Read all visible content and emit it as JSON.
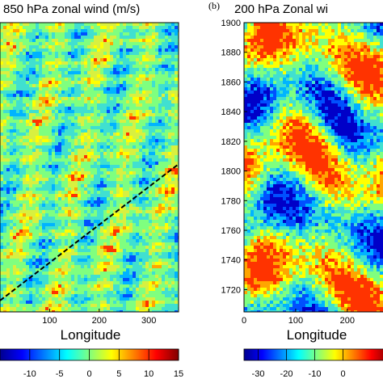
{
  "chart_data": [
    {
      "type": "heatmap",
      "title": "850 hPa zonal wind (m/s)",
      "xlabel": "Longitude",
      "x_ticks": [
        100,
        200,
        300
      ],
      "xlim": [
        0,
        360
      ],
      "colorbar": {
        "ticks": [
          -10,
          -5,
          0,
          5,
          10,
          15
        ],
        "range": [
          -15,
          15
        ]
      },
      "annotation": "dashed diagonal line",
      "line": {
        "x": [
          0,
          360
        ],
        "y_fraction": [
          0.0,
          0.55
        ]
      }
    },
    {
      "type": "heatmap",
      "panel_label": "(b)",
      "title": "200 hPa Zonal wi",
      "xlabel": "Longitude",
      "x_ticks": [
        0,
        100,
        200
      ],
      "xlim": [
        0,
        360
      ],
      "y_ticks": [
        1720,
        1740,
        1760,
        1780,
        1800,
        1820,
        1840,
        1860,
        1880,
        1900
      ],
      "ylim": [
        1705,
        1900
      ],
      "colorbar": {
        "ticks": [
          -30,
          -20,
          -10,
          0
        ],
        "range": [
          -35,
          35
        ]
      }
    }
  ],
  "colormap": [
    "#0000c8",
    "#0050ff",
    "#00b4ff",
    "#40e0d0",
    "#7fff7f",
    "#d8f040",
    "#ffff00",
    "#ffa500",
    "#ff3300",
    "#b40000"
  ]
}
